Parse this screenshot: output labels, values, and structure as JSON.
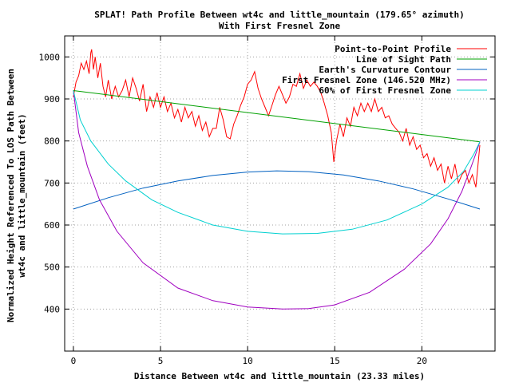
{
  "chart_data": {
    "type": "line",
    "title": "SPLAT! Path Profile Between wt4c and little_mountain (179.65° azimuth)",
    "subtitle": "With First Fresnel Zone",
    "xlabel": "Distance Between wt4c and little_mountain (23.33 miles)",
    "ylabel_line1": "Normalized Height Referenced To LOS Path Between",
    "ylabel_line2": "wt4c and little_mountain (feet)",
    "xlim": [
      -0.5,
      24.2
    ],
    "ylim": [
      300,
      1050
    ],
    "x_ticks": [
      0,
      5,
      10,
      15,
      20
    ],
    "y_ticks": [
      400,
      500,
      600,
      700,
      800,
      900,
      1000
    ],
    "x_tick_labels": [
      "0",
      "5",
      "10",
      "15",
      "20"
    ],
    "y_tick_labels": [
      "400",
      "500",
      "600",
      "700",
      "800",
      "900",
      "1000"
    ],
    "grid": true,
    "legend_position": "top-right",
    "series": [
      {
        "name": "Point-to-Point Profile",
        "color": "#ff0000",
        "x": [
          0,
          0.15,
          0.3,
          0.45,
          0.6,
          0.75,
          0.9,
          1.0,
          1.05,
          1.15,
          1.25,
          1.4,
          1.55,
          1.7,
          1.85,
          2.0,
          2.2,
          2.4,
          2.6,
          2.8,
          3.0,
          3.2,
          3.4,
          3.6,
          3.8,
          4.0,
          4.2,
          4.4,
          4.6,
          4.8,
          5.0,
          5.2,
          5.4,
          5.6,
          5.8,
          6.0,
          6.2,
          6.4,
          6.6,
          6.8,
          7.0,
          7.2,
          7.4,
          7.6,
          7.8,
          8.0,
          8.2,
          8.4,
          8.6,
          8.8,
          9.0,
          9.2,
          9.4,
          9.6,
          9.8,
          10.0,
          10.2,
          10.4,
          10.6,
          10.8,
          11.0,
          11.2,
          11.4,
          11.6,
          11.8,
          12.0,
          12.2,
          12.4,
          12.6,
          12.8,
          13.0,
          13.2,
          13.4,
          13.6,
          13.8,
          14.0,
          14.2,
          14.4,
          14.6,
          14.8,
          14.95,
          15.1,
          15.3,
          15.5,
          15.7,
          15.9,
          16.1,
          16.3,
          16.5,
          16.7,
          16.9,
          17.1,
          17.3,
          17.5,
          17.7,
          17.9,
          18.1,
          18.3,
          18.5,
          18.7,
          18.9,
          19.1,
          19.3,
          19.5,
          19.7,
          19.9,
          20.1,
          20.3,
          20.5,
          20.7,
          20.9,
          21.1,
          21.3,
          21.5,
          21.7,
          21.9,
          22.1,
          22.3,
          22.5,
          22.7,
          22.9,
          23.1,
          23.33
        ],
        "y": [
          905,
          940,
          955,
          985,
          970,
          990,
          960,
          1010,
          1018,
          970,
          1000,
          950,
          985,
          930,
          905,
          945,
          900,
          930,
          905,
          920,
          945,
          905,
          950,
          925,
          895,
          935,
          870,
          905,
          880,
          915,
          880,
          905,
          870,
          890,
          855,
          875,
          845,
          880,
          855,
          870,
          835,
          860,
          825,
          845,
          810,
          830,
          830,
          880,
          850,
          810,
          805,
          840,
          860,
          885,
          905,
          935,
          945,
          965,
          925,
          900,
          880,
          860,
          885,
          910,
          930,
          910,
          890,
          905,
          935,
          930,
          960,
          925,
          945,
          930,
          940,
          930,
          915,
          890,
          860,
          820,
          750,
          800,
          840,
          810,
          855,
          835,
          880,
          860,
          890,
          870,
          890,
          870,
          900,
          870,
          880,
          855,
          860,
          840,
          830,
          820,
          800,
          830,
          790,
          810,
          780,
          790,
          760,
          770,
          740,
          760,
          730,
          745,
          700,
          740,
          710,
          745,
          700,
          720,
          730,
          700,
          720,
          690,
          790
        ]
      },
      {
        "name": "Line of Sight Path",
        "color": "#00a000",
        "x": [
          0,
          23.33
        ],
        "y": [
          920,
          798
        ]
      },
      {
        "name": "Earth's Curvature Contour",
        "color": "#0060c0",
        "x": [
          0,
          2,
          4,
          6,
          8,
          10,
          11.67,
          13.5,
          15.5,
          17.5,
          19.5,
          21.5,
          23.33
        ],
        "y": [
          638,
          665,
          688,
          705,
          718,
          726,
          729,
          727,
          719,
          705,
          686,
          662,
          638
        ]
      },
      {
        "name": "First Fresnel Zone (146.520 MHz)",
        "color": "#a000c0",
        "x": [
          0,
          0.3,
          0.8,
          1.5,
          2.5,
          4,
          6,
          8,
          10,
          12,
          13.5,
          15,
          17,
          19,
          20.5,
          21.5,
          22.3,
          22.8,
          23.1,
          23.33
        ],
        "y": [
          920,
          820,
          740,
          660,
          585,
          510,
          450,
          420,
          405,
          400,
          401,
          410,
          440,
          495,
          555,
          615,
          680,
          735,
          770,
          798
        ]
      },
      {
        "name": "60% of First Fresnel Zone",
        "color": "#00d0d0",
        "x": [
          0,
          0.4,
          1,
          2,
          3,
          4.5,
          6,
          8,
          10,
          12,
          14,
          16,
          18,
          20,
          21.5,
          22.4,
          23,
          23.33
        ],
        "y": [
          920,
          850,
          800,
          745,
          705,
          660,
          630,
          600,
          585,
          579,
          580,
          590,
          612,
          650,
          690,
          728,
          770,
          798
        ]
      }
    ]
  }
}
